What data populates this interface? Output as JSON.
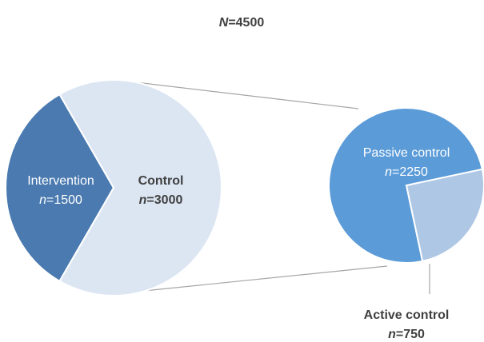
{
  "chart_data": {
    "type": "pie",
    "title": {
      "italic": "N",
      "rest": "=4500"
    },
    "main_pie": {
      "slices": [
        {
          "name": "Intervention",
          "n_text": "=1500",
          "value": 1500,
          "color": "#4a7ab0"
        },
        {
          "name": "Control",
          "n_text": "=3000",
          "value": 3000,
          "color": "#dce6f3"
        }
      ]
    },
    "sub_pie": {
      "parent": "Control",
      "slices": [
        {
          "name": "Passive control",
          "n_text": "=2250",
          "value": 2250,
          "color": "#5b9bd8"
        },
        {
          "name": "Active control",
          "n_text": "=750",
          "value": 750,
          "color": "#adc7e5"
        }
      ]
    }
  }
}
